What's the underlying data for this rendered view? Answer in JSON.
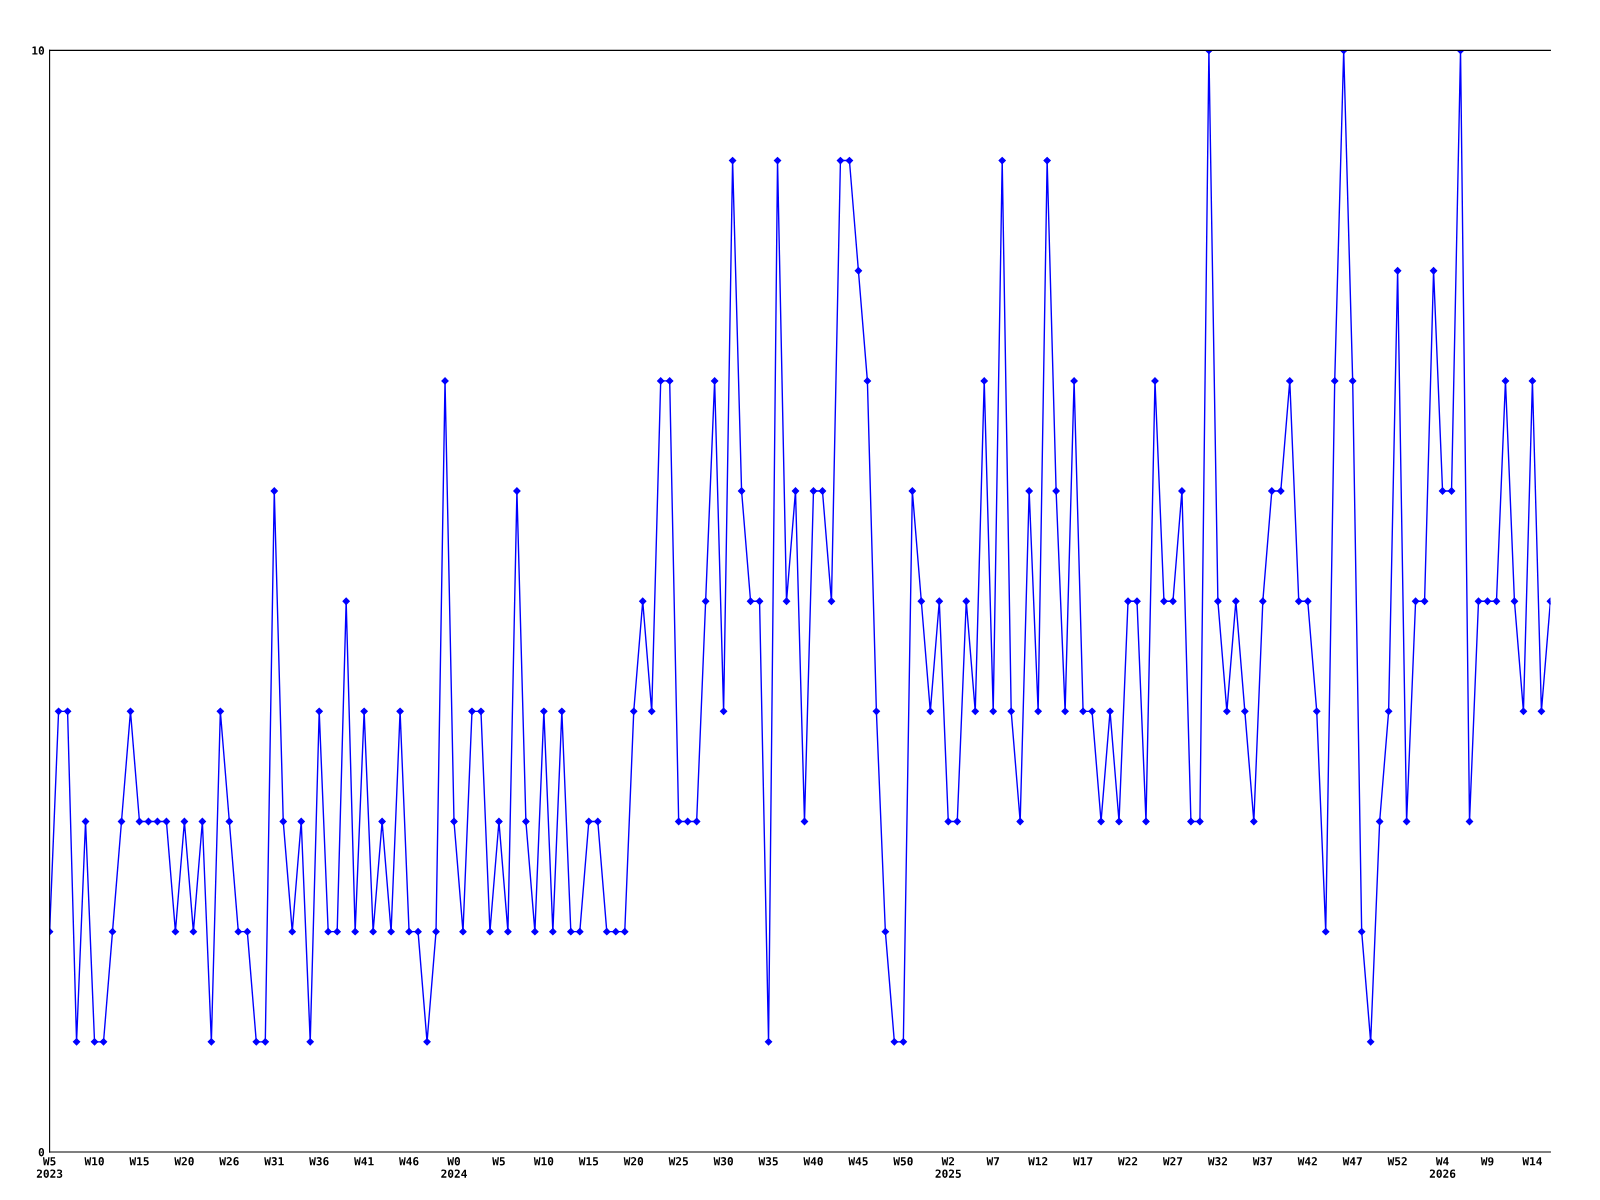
{
  "chart_data": {
    "type": "line",
    "categories": [
      "W5\n2023",
      null,
      null,
      null,
      null,
      "W10",
      null,
      null,
      null,
      null,
      "W15",
      null,
      null,
      null,
      null,
      "W20",
      null,
      null,
      null,
      null,
      "W26",
      null,
      null,
      null,
      null,
      "W31",
      null,
      null,
      null,
      null,
      "W36",
      null,
      null,
      null,
      null,
      "W41",
      null,
      null,
      null,
      null,
      "W46",
      null,
      null,
      null,
      null,
      "W0\n2024",
      null,
      null,
      null,
      null,
      "W5",
      null,
      null,
      null,
      null,
      "W10",
      null,
      null,
      null,
      null,
      "W15",
      null,
      null,
      null,
      null,
      "W20",
      null,
      null,
      null,
      null,
      "W25",
      null,
      null,
      null,
      null,
      "W30",
      null,
      null,
      null,
      null,
      "W35",
      null,
      null,
      null,
      null,
      "W40",
      null,
      null,
      null,
      null,
      "W45",
      null,
      null,
      null,
      null,
      "W50",
      null,
      null,
      null,
      null,
      "W2\n2025",
      null,
      null,
      null,
      null,
      "W7",
      null,
      null,
      null,
      null,
      "W12",
      null,
      null,
      null,
      null,
      "W17",
      null,
      null,
      null,
      null,
      "W22",
      null,
      null,
      null,
      null,
      "W27",
      null,
      null,
      null,
      null,
      "W32",
      null,
      null,
      null,
      null,
      "W37",
      null,
      null,
      null,
      null,
      "W42",
      null,
      null,
      null,
      null,
      "W47",
      null,
      null,
      null,
      null,
      "W52",
      null,
      null,
      null,
      null,
      "W4\n2026",
      null,
      null,
      null,
      null,
      "W9",
      null,
      null,
      null,
      null,
      "W14",
      null,
      null
    ],
    "series": [
      {
        "color": "#0000ff",
        "values": [
          2,
          4,
          4,
          1,
          3,
          1,
          1,
          2,
          3,
          4,
          3,
          3,
          3,
          3,
          2,
          3,
          2,
          3,
          1,
          4,
          3,
          2,
          2,
          1,
          1,
          6,
          3,
          2,
          3,
          1,
          4,
          2,
          2,
          5,
          2,
          4,
          2,
          3,
          2,
          4,
          2,
          2,
          1,
          2,
          7,
          3,
          2,
          4,
          4,
          2,
          3,
          2,
          6,
          3,
          2,
          4,
          2,
          4,
          2,
          2,
          3,
          3,
          2,
          2,
          2,
          4,
          5,
          4,
          7,
          7,
          3,
          3,
          3,
          5,
          7,
          4,
          9,
          6,
          5,
          5,
          1,
          9,
          5,
          6,
          3,
          6,
          6,
          5,
          9,
          9,
          8,
          7,
          4,
          2,
          1,
          1,
          6,
          5,
          4,
          5,
          3,
          3,
          5,
          4,
          7,
          4,
          9,
          4,
          3,
          6,
          4,
          9,
          6,
          4,
          7,
          4,
          4,
          3,
          4,
          3,
          5,
          5,
          3,
          7,
          5,
          5,
          6,
          3,
          3,
          10,
          5,
          4,
          5,
          4,
          3,
          5,
          6,
          6,
          7,
          5,
          5,
          4,
          2,
          7,
          10,
          7,
          2,
          1,
          3,
          4,
          8,
          3,
          5,
          5,
          8,
          6,
          6,
          10,
          3,
          5,
          5,
          5,
          7,
          5,
          4,
          7,
          4,
          5
        ]
      }
    ],
    "ylim": [
      0,
      10
    ],
    "yticks": [
      0,
      10
    ],
    "grid": false,
    "legend": false,
    "marker": "diamond",
    "line_style": "solid"
  }
}
